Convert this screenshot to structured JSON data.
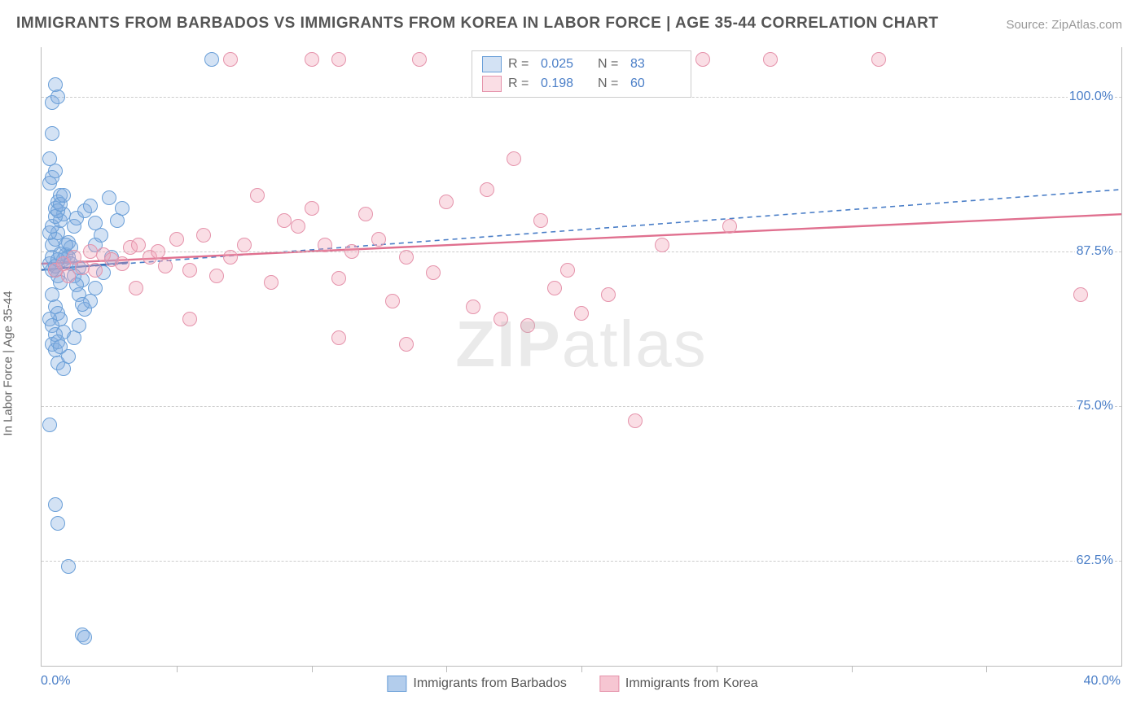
{
  "title": "IMMIGRANTS FROM BARBADOS VS IMMIGRANTS FROM KOREA IN LABOR FORCE | AGE 35-44 CORRELATION CHART",
  "source": "Source: ZipAtlas.com",
  "watermark": "ZIPatlas",
  "chart": {
    "type": "scatter",
    "xlim": [
      0.0,
      40.0
    ],
    "ylim": [
      54.0,
      104.0
    ],
    "xaxis_min_label": "0.0%",
    "xaxis_max_label": "40.0%",
    "yaxis_label": "In Labor Force | Age 35-44",
    "yticks": [
      {
        "v": 62.5,
        "label": "62.5%"
      },
      {
        "v": 75.0,
        "label": "75.0%"
      },
      {
        "v": 87.5,
        "label": "87.5%"
      },
      {
        "v": 100.0,
        "label": "100.0%"
      }
    ],
    "xticks": [
      5,
      10,
      15,
      20,
      25,
      30,
      35
    ],
    "grid_color": "#cccccc",
    "background_color": "#ffffff",
    "point_radius": 8,
    "point_border_width": 1.2,
    "series": [
      {
        "name": "Immigrants from Barbados",
        "fill": "rgba(128,172,224,0.35)",
        "stroke": "#6a9fd8",
        "trend": {
          "x1": 0,
          "y1": 86.0,
          "x2": 40,
          "y2": 92.5,
          "color": "#4a7ec7",
          "dash": "6,5",
          "width": 1.6
        },
        "trend_solid": {
          "x1": 0,
          "y1": 86.0,
          "x2": 3.2,
          "y2": 86.6,
          "color": "#3a6fb8",
          "width": 2.2
        },
        "R": "0.025",
        "N": "83",
        "points": [
          [
            0.3,
            86.5
          ],
          [
            0.4,
            87.0
          ],
          [
            0.5,
            86.0
          ],
          [
            0.6,
            85.5
          ],
          [
            0.4,
            88.0
          ],
          [
            0.5,
            88.5
          ],
          [
            0.6,
            89.0
          ],
          [
            0.7,
            90.0
          ],
          [
            0.8,
            90.5
          ],
          [
            0.5,
            91.0
          ],
          [
            0.6,
            91.5
          ],
          [
            0.7,
            92.0
          ],
          [
            0.4,
            84.0
          ],
          [
            0.5,
            83.0
          ],
          [
            0.6,
            82.5
          ],
          [
            0.7,
            82.0
          ],
          [
            0.8,
            81.0
          ],
          [
            0.4,
            80.0
          ],
          [
            0.5,
            79.5
          ],
          [
            0.6,
            78.5
          ],
          [
            0.7,
            85.0
          ],
          [
            0.8,
            86.8
          ],
          [
            0.9,
            87.2
          ],
          [
            1.0,
            88.2
          ],
          [
            1.1,
            87.8
          ],
          [
            1.2,
            89.5
          ],
          [
            1.3,
            90.2
          ],
          [
            1.4,
            86.2
          ],
          [
            1.5,
            85.2
          ],
          [
            1.6,
            90.8
          ],
          [
            1.8,
            91.2
          ],
          [
            2.0,
            89.8
          ],
          [
            2.2,
            88.8
          ],
          [
            2.5,
            91.8
          ],
          [
            2.8,
            90.0
          ],
          [
            3.0,
            91.0
          ],
          [
            0.3,
            93.0
          ],
          [
            0.4,
            93.5
          ],
          [
            0.5,
            94.0
          ],
          [
            0.3,
            95.0
          ],
          [
            0.4,
            99.5
          ],
          [
            0.5,
            101.0
          ],
          [
            0.6,
            100.0
          ],
          [
            0.4,
            97.0
          ],
          [
            0.3,
            73.5
          ],
          [
            0.5,
            67.0
          ],
          [
            0.6,
            65.5
          ],
          [
            1.5,
            56.5
          ],
          [
            1.6,
            56.3
          ],
          [
            1.0,
            62.0
          ],
          [
            0.8,
            78.0
          ],
          [
            1.0,
            79.0
          ],
          [
            1.2,
            80.5
          ],
          [
            1.4,
            81.5
          ],
          [
            1.6,
            82.8
          ],
          [
            1.8,
            83.5
          ],
          [
            2.0,
            84.5
          ],
          [
            2.3,
            85.8
          ],
          [
            2.6,
            87.0
          ],
          [
            0.3,
            89.0
          ],
          [
            0.4,
            89.5
          ],
          [
            0.5,
            90.3
          ],
          [
            0.6,
            90.8
          ],
          [
            0.7,
            91.3
          ],
          [
            0.8,
            92.0
          ],
          [
            0.9,
            88.0
          ],
          [
            1.0,
            87.0
          ],
          [
            1.1,
            86.5
          ],
          [
            1.2,
            85.5
          ],
          [
            1.3,
            84.8
          ],
          [
            1.4,
            84.0
          ],
          [
            1.5,
            83.2
          ],
          [
            0.3,
            82.0
          ],
          [
            0.4,
            81.5
          ],
          [
            0.5,
            80.8
          ],
          [
            0.6,
            80.2
          ],
          [
            0.7,
            79.8
          ],
          [
            0.4,
            86.0
          ],
          [
            0.5,
            86.3
          ],
          [
            0.6,
            86.8
          ],
          [
            0.7,
            87.3
          ],
          [
            6.3,
            103.0
          ],
          [
            2.0,
            88.0
          ]
        ]
      },
      {
        "name": "Immigrants from Korea",
        "fill": "rgba(240,160,180,0.35)",
        "stroke": "#e593ab",
        "trend": {
          "x1": 0,
          "y1": 86.5,
          "x2": 40,
          "y2": 90.5,
          "color": "#e0708f",
          "dash": null,
          "width": 2.4
        },
        "R": "0.198",
        "N": "60",
        "points": [
          [
            0.5,
            86.0
          ],
          [
            0.8,
            86.5
          ],
          [
            1.2,
            87.0
          ],
          [
            1.5,
            86.2
          ],
          [
            1.8,
            87.5
          ],
          [
            2.0,
            86.0
          ],
          [
            2.3,
            87.2
          ],
          [
            2.6,
            86.8
          ],
          [
            3.0,
            86.5
          ],
          [
            3.3,
            87.8
          ],
          [
            3.6,
            88.0
          ],
          [
            4.0,
            87.0
          ],
          [
            4.3,
            87.5
          ],
          [
            4.6,
            86.3
          ],
          [
            5.0,
            88.5
          ],
          [
            5.5,
            86.0
          ],
          [
            6.0,
            88.8
          ],
          [
            6.5,
            85.5
          ],
          [
            7.0,
            87.0
          ],
          [
            7.5,
            88.0
          ],
          [
            8.0,
            92.0
          ],
          [
            8.5,
            85.0
          ],
          [
            9.0,
            90.0
          ],
          [
            9.5,
            89.5
          ],
          [
            10.0,
            91.0
          ],
          [
            10.5,
            88.0
          ],
          [
            11.0,
            85.3
          ],
          [
            11.5,
            87.5
          ],
          [
            12.0,
            90.5
          ],
          [
            12.5,
            88.5
          ],
          [
            13.0,
            83.5
          ],
          [
            13.5,
            87.0
          ],
          [
            14.0,
            103.0
          ],
          [
            14.5,
            85.8
          ],
          [
            15.0,
            91.5
          ],
          [
            16.0,
            83.0
          ],
          [
            16.5,
            92.5
          ],
          [
            17.0,
            82.0
          ],
          [
            17.5,
            95.0
          ],
          [
            18.0,
            81.5
          ],
          [
            18.5,
            90.0
          ],
          [
            19.0,
            84.5
          ],
          [
            19.5,
            86.0
          ],
          [
            20.0,
            82.5
          ],
          [
            21.0,
            84.0
          ],
          [
            22.0,
            73.8
          ],
          [
            23.0,
            88.0
          ],
          [
            24.5,
            103.0
          ],
          [
            25.5,
            89.5
          ],
          [
            27.0,
            103.0
          ],
          [
            31.0,
            103.0
          ],
          [
            38.5,
            84.0
          ],
          [
            10.0,
            103.0
          ],
          [
            11.0,
            103.0
          ],
          [
            11.0,
            80.5
          ],
          [
            13.5,
            80.0
          ],
          [
            7.0,
            103.0
          ],
          [
            3.5,
            84.5
          ],
          [
            5.5,
            82.0
          ],
          [
            1.0,
            85.5
          ]
        ]
      }
    ]
  },
  "legend_bottom": [
    {
      "label": "Immigrants from Barbados",
      "fill": "rgba(128,172,224,0.6)",
      "stroke": "#6a9fd8"
    },
    {
      "label": "Immigrants from Korea",
      "fill": "rgba(240,160,180,0.6)",
      "stroke": "#e593ab"
    }
  ]
}
